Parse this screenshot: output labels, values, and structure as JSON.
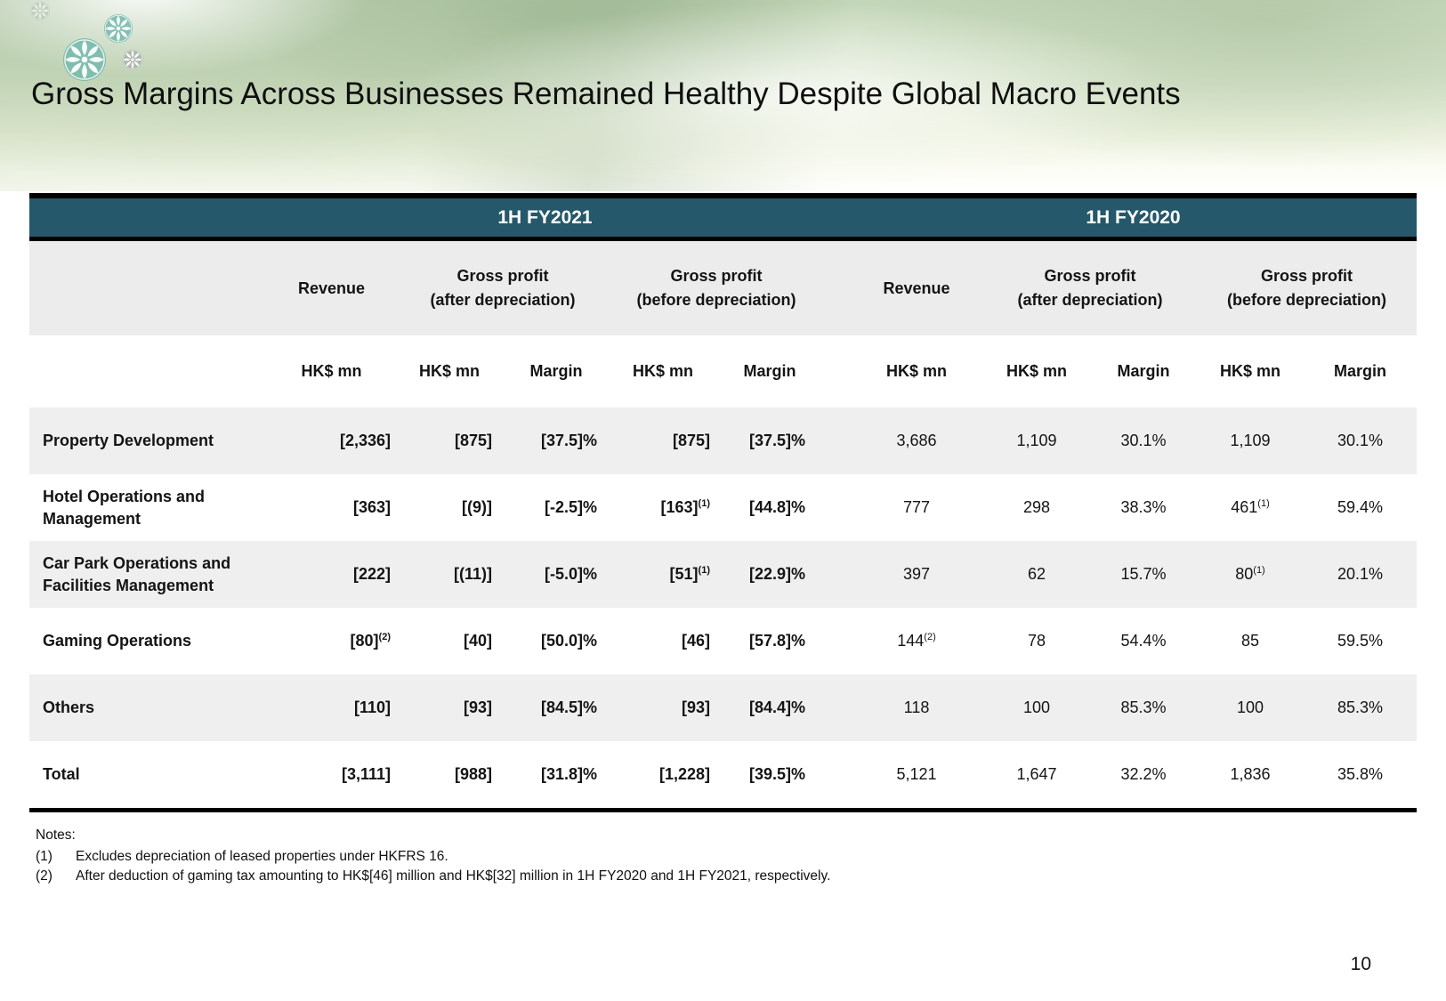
{
  "slide": {
    "title": "Gross Margins Across Businesses Remained Healthy Despite Global Macro Events",
    "page_number": "10"
  },
  "table": {
    "periods": [
      "1H FY2021",
      "1H FY2020"
    ],
    "group_headers": {
      "revenue": "Revenue",
      "gp_after": [
        "Gross profit",
        "(after depreciation)"
      ],
      "gp_before": [
        "Gross profit",
        "(before depreciation)"
      ]
    },
    "units": {
      "amount": "HK$ mn",
      "margin": "Margin"
    },
    "rows": [
      {
        "label": "Property Development",
        "fy2021": [
          "[2,336]",
          "[875]",
          "[37.5]%",
          "[875]",
          "[37.5]%"
        ],
        "fy2020": [
          "3,686",
          "1,109",
          "30.1%",
          "1,109",
          "30.1%"
        ]
      },
      {
        "label": "Hotel Operations and Management",
        "fy2021": [
          "[363]",
          "[(9)]",
          "[-2.5]%",
          {
            "v": "[163]",
            "sup": "(1)"
          },
          "[44.8]%"
        ],
        "fy2020": [
          "777",
          "298",
          "38.3%",
          {
            "v": "461",
            "sup": "(1)"
          },
          "59.4%"
        ]
      },
      {
        "label": "Car Park Operations and Facilities Management",
        "fy2021": [
          "[222]",
          "[(11)]",
          "[-5.0]%",
          {
            "v": "[51]",
            "sup": "(1)"
          },
          "[22.9]%"
        ],
        "fy2020": [
          "397",
          "62",
          "15.7%",
          {
            "v": "80",
            "sup": "(1)"
          },
          "20.1%"
        ]
      },
      {
        "label": "Gaming Operations",
        "fy2021": [
          {
            "v": "[80]",
            "sup": "(2)"
          },
          "[40]",
          "[50.0]%",
          "[46]",
          "[57.8]%"
        ],
        "fy2020": [
          {
            "v": "144",
            "sup": "(2)"
          },
          "78",
          "54.4%",
          "85",
          "59.5%"
        ]
      },
      {
        "label": "Others",
        "fy2021": [
          "[110]",
          "[93]",
          "[84.5]%",
          "[93]",
          "[84.4]%"
        ],
        "fy2020": [
          "118",
          "100",
          "85.3%",
          "100",
          "85.3%"
        ]
      },
      {
        "label": "Total",
        "fy2021": [
          "[3,111]",
          "[988]",
          "[31.8]%",
          "[1,228]",
          "[39.5]%"
        ],
        "fy2020": [
          "5,121",
          "1,647",
          "32.2%",
          "1,836",
          "35.8%"
        ]
      }
    ]
  },
  "notes": {
    "heading": "Notes:",
    "items": [
      {
        "marker": "(1)",
        "text": "Excludes depreciation of leased properties under HKFRS 16."
      },
      {
        "marker": "(2)",
        "text": "After deduction of gaming tax amounting to HK$[46] million and HK$[32] million in 1H FY2020 and 1H FY2021, respectively."
      }
    ]
  },
  "colors": {
    "teal_band": "#24586A",
    "header_gray": "#ECECEC",
    "row_gray": "#EFEFEF",
    "ornament_teal": "#74B9AC",
    "ornament_gray": "#A9AFA6"
  }
}
